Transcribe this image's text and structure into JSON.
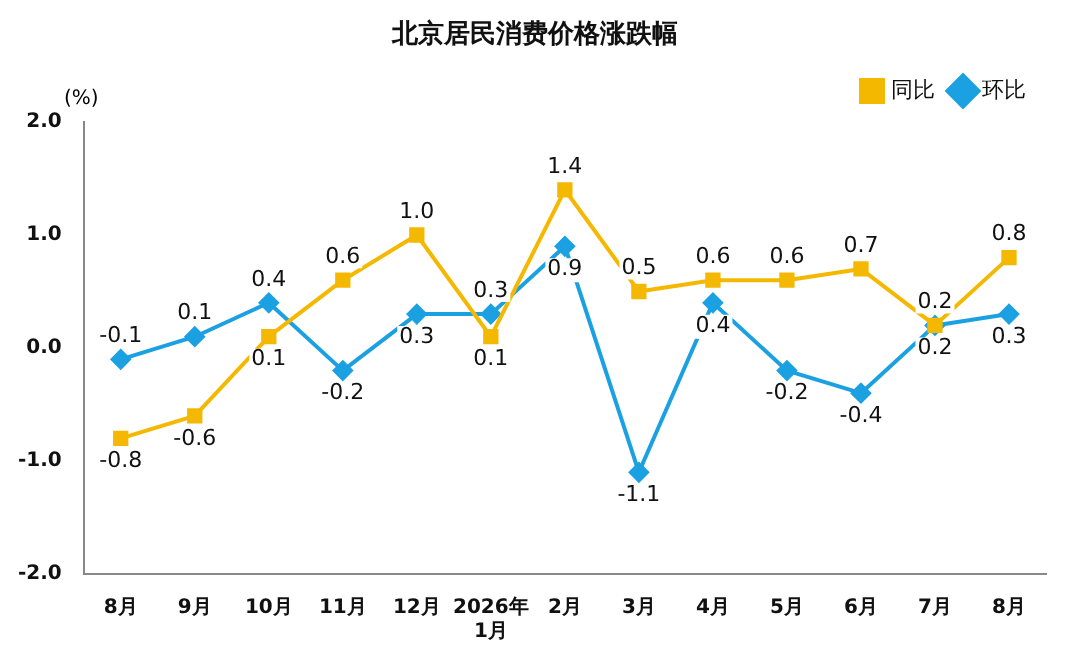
{
  "chart_data": {
    "type": "line",
    "title": "北京居民消费价格涨跌幅",
    "ylabel": "(%)",
    "categories": [
      "8月",
      "9月",
      "10月",
      "11月",
      "12月",
      "2026年\n1月",
      "2月",
      "3月",
      "4月",
      "5月",
      "6月",
      "7月",
      "8月"
    ],
    "series": [
      {
        "name": "同比",
        "color": "#f5b800",
        "marker": "square",
        "values": [
          -0.8,
          -0.6,
          0.1,
          0.6,
          1.0,
          0.1,
          1.4,
          0.5,
          0.6,
          0.6,
          0.7,
          0.2,
          0.8
        ],
        "value_labels": [
          "-0.8",
          "-0.6",
          "0.1",
          "0.6",
          "1.0",
          "0.1",
          "1.4",
          "0.5",
          "0.6",
          "0.6",
          "0.7",
          "0.2",
          "0.8"
        ]
      },
      {
        "name": "环比",
        "color": "#1ba1e2",
        "marker": "diamond",
        "values": [
          -0.1,
          0.1,
          0.4,
          -0.2,
          0.3,
          0.3,
          0.9,
          -1.1,
          0.4,
          -0.2,
          -0.4,
          0.2,
          0.3
        ],
        "value_labels": [
          "-0.1",
          "0.1",
          "0.4",
          "-0.2",
          "0.3",
          "0.3",
          "0.9",
          "-1.1",
          "0.4",
          "-0.2",
          "-0.4",
          "0.2",
          "0.3"
        ]
      }
    ],
    "ylim": [
      -2.0,
      2.0
    ],
    "yticks": [
      {
        "value": -2,
        "label": "-2.0"
      },
      {
        "value": -1,
        "label": "-1.0"
      },
      {
        "value": 0,
        "label": "0.0"
      },
      {
        "value": 1,
        "label": "1.0"
      },
      {
        "value": 2,
        "label": "2.0"
      }
    ],
    "grid": false,
    "legend": "top right",
    "line_style": "solid"
  }
}
